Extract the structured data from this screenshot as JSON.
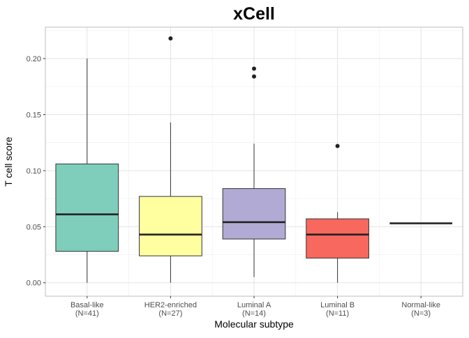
{
  "chart_data": {
    "type": "box",
    "title": "xCell",
    "xlabel": "Molecular subtype",
    "ylabel": "T cell score",
    "ylim": [
      -0.012,
      0.228
    ],
    "yticks": [
      0.0,
      0.05,
      0.1,
      0.15,
      0.2
    ],
    "ytick_labels": [
      "0.00",
      "0.05",
      "0.10",
      "0.15",
      "0.20"
    ],
    "grid": true,
    "legend": "none",
    "categories": [
      {
        "name": "Basal-like",
        "n_label": "(N=41)",
        "color": "#7fcdbb"
      },
      {
        "name": "HER2-enriched",
        "n_label": "(N=27)",
        "color": "#ffffa0"
      },
      {
        "name": "Luminal A",
        "n_label": "(N=14)",
        "color": "#b0aad4"
      },
      {
        "name": "Luminal B",
        "n_label": "(N=11)",
        "color": "#f8685f"
      },
      {
        "name": "Normal-like",
        "n_label": "(N=3)",
        "color": "#c0c0c0"
      }
    ],
    "boxes": [
      {
        "whisker_low": 0.0,
        "q1": 0.028,
        "median": 0.061,
        "q3": 0.106,
        "whisker_high": 0.2,
        "outliers": []
      },
      {
        "whisker_low": 0.0,
        "q1": 0.024,
        "median": 0.043,
        "q3": 0.077,
        "whisker_high": 0.143,
        "outliers": [
          0.218
        ]
      },
      {
        "whisker_low": 0.005,
        "q1": 0.039,
        "median": 0.054,
        "q3": 0.084,
        "whisker_high": 0.124,
        "outliers": [
          0.184,
          0.191
        ]
      },
      {
        "whisker_low": 0.0,
        "q1": 0.022,
        "median": 0.043,
        "q3": 0.057,
        "whisker_high": 0.063,
        "outliers": [
          0.122
        ]
      },
      {
        "whisker_low": 0.053,
        "q1": 0.053,
        "median": 0.053,
        "q3": 0.053,
        "whisker_high": 0.053,
        "outliers": []
      }
    ]
  }
}
